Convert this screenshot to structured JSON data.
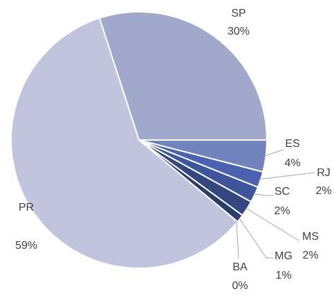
{
  "chart_data": {
    "type": "pie",
    "categories": [
      "SP",
      "ES",
      "RJ",
      "SC",
      "MS",
      "MG",
      "BA",
      "PR"
    ],
    "values": [
      30,
      4,
      2,
      2,
      2,
      1,
      0,
      59
    ],
    "value_labels": [
      "30%",
      "4%",
      "2%",
      "2%",
      "2%",
      "1%",
      "0%",
      "59%"
    ],
    "colors": [
      "#a0a8cc",
      "#7282bd",
      "#4a62b0",
      "#3f5599",
      "#34487f",
      "#2b3c6a",
      "#8e9fd4",
      "#c0c4dc"
    ]
  }
}
